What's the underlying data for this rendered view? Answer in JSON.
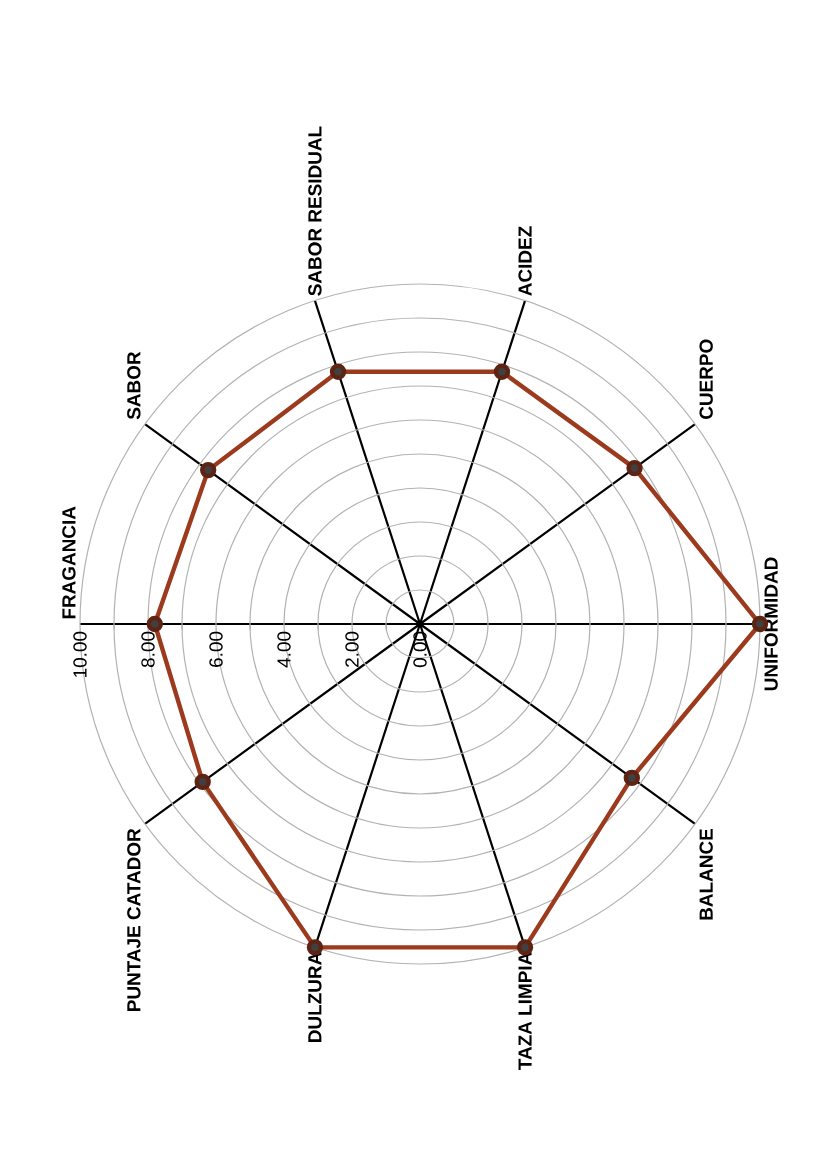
{
  "chart_data": {
    "type": "radar",
    "categories": [
      "FRAGANCIA",
      "SABOR",
      "SABOR RESIDUAL",
      "ACIDEZ",
      "CUERPO",
      "UNIFORMIDAD",
      "BALANCE",
      "TAZA LIMPIA",
      "DULZURA",
      "PUNTAJE CATADOR"
    ],
    "series": [
      {
        "color": "#9c3a1e",
        "values": [
          7.8,
          7.7,
          7.8,
          7.8,
          7.8,
          10,
          7.7,
          10,
          10,
          7.9
        ]
      }
    ],
    "ylim": [
      0,
      10
    ],
    "yticks": [
      {
        "value": 0,
        "label": "0.00"
      },
      {
        "value": 2,
        "label": "2.00"
      },
      {
        "value": 4,
        "label": "4.00"
      },
      {
        "value": 6,
        "label": "6.00"
      },
      {
        "value": 8,
        "label": "8.00"
      },
      {
        "value": 10,
        "label": "10.00"
      }
    ],
    "grid": true,
    "marker": "circle",
    "line_style": "solid"
  }
}
